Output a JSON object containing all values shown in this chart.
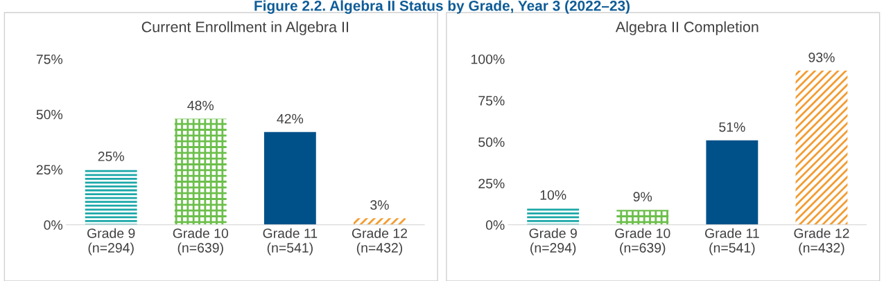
{
  "chart_data": [
    {
      "type": "bar",
      "title": "Current Enrollment in Algebra II",
      "annotations": [
        "Figure 2.2. Algebra II Status by Grade, Year 3 (2022–23)"
      ],
      "categories": [
        "Grade 9\n(n=294)",
        "Grade 10\n(n=639)",
        "Grade 11\n(n=541)",
        "Grade 12\n(n=432)"
      ],
      "values": [
        25,
        48,
        42,
        3
      ],
      "colors": [
        "#1aa7a8",
        "#6cbf4b",
        "#00518a",
        "#f39c32"
      ],
      "ylim": [
        0,
        75
      ],
      "yticks": [
        {
          "value": 0,
          "label": "0%"
        },
        {
          "value": 25,
          "label": "25%"
        },
        {
          "value": 50,
          "label": "50%"
        },
        {
          "value": 75,
          "label": "75%"
        }
      ],
      "value_labels": [
        "25%",
        "48%",
        "42%",
        "3%"
      ]
    },
    {
      "type": "bar",
      "title": "Algebra II Completion",
      "categories": [
        "Grade 9\n(n=294)",
        "Grade 10\n(n=639)",
        "Grade 11\n(n=541)",
        "Grade 12\n(n=432)"
      ],
      "values": [
        10,
        9,
        51,
        93
      ],
      "colors": [
        "#1aa7a8",
        "#6cbf4b",
        "#00518a",
        "#f39c32"
      ],
      "ylim": [
        0,
        100
      ],
      "yticks": [
        {
          "value": 0,
          "label": "0%"
        },
        {
          "value": 25,
          "label": "25%"
        },
        {
          "value": 50,
          "label": "50%"
        },
        {
          "value": 75,
          "label": "75%"
        },
        {
          "value": 100,
          "label": "100%"
        }
      ],
      "value_labels": [
        "10%",
        "9%",
        "51%",
        "93%"
      ]
    }
  ]
}
